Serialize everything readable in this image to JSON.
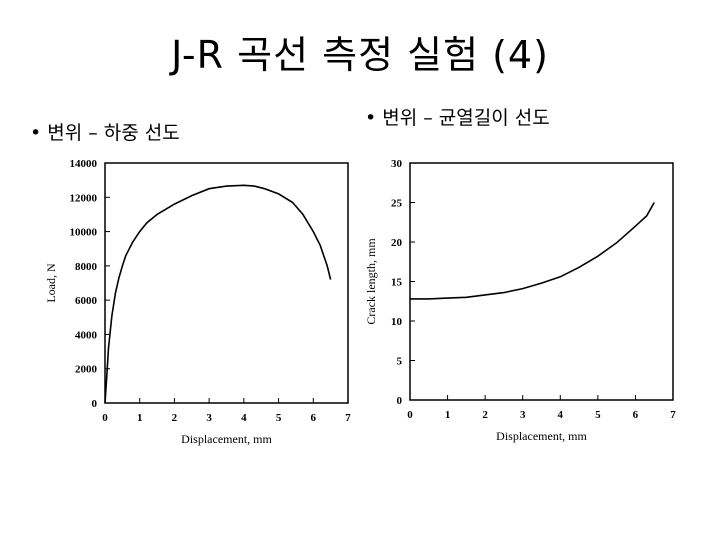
{
  "slide": {
    "title": "J-R 곡선 측정 실험 (4)",
    "bullet_left": "• 변위 – 하중 선도",
    "bullet_right": "• 변위 – 균열길이 선도"
  },
  "colors": {
    "line": "#000000",
    "background": "#ffffff"
  },
  "chart_data": [
    {
      "type": "line",
      "xlabel": "Displacement, mm",
      "ylabel": "Load, N",
      "xlim": [
        0,
        7
      ],
      "ylim": [
        0,
        14000
      ],
      "xticks": [
        "0",
        "1",
        "2",
        "3",
        "4",
        "5",
        "6",
        "7"
      ],
      "yticks": [
        "0",
        "2000",
        "4000",
        "6000",
        "8000",
        "10000",
        "12000",
        "14000"
      ],
      "grid": false,
      "series": [
        {
          "x": [
            0,
            0.05,
            0.1,
            0.2,
            0.3,
            0.4,
            0.5,
            0.6,
            0.8,
            1.0,
            1.2,
            1.5,
            2.0,
            2.5,
            3.0,
            3.5,
            4.0,
            4.3,
            4.6,
            5.0,
            5.4,
            5.7,
            6.0,
            6.2,
            6.3,
            6.4,
            6.5
          ],
          "y": [
            0,
            1500,
            3200,
            5100,
            6400,
            7300,
            8000,
            8600,
            9400,
            10000,
            10500,
            11000,
            11600,
            12100,
            12500,
            12650,
            12700,
            12650,
            12500,
            12200,
            11700,
            11000,
            10000,
            9200,
            8600,
            8000,
            7200
          ]
        }
      ]
    },
    {
      "type": "line",
      "xlabel": "Displacement, mm",
      "ylabel": "Crack length, mm",
      "xlim": [
        0,
        7
      ],
      "ylim": [
        0,
        30
      ],
      "xticks": [
        "0",
        "1",
        "2",
        "3",
        "4",
        "5",
        "6",
        "7"
      ],
      "yticks": [
        "0",
        "5",
        "10",
        "15",
        "20",
        "25",
        "30"
      ],
      "grid": false,
      "series": [
        {
          "x": [
            0,
            0.5,
            1.0,
            1.5,
            2.0,
            2.5,
            3.0,
            3.5,
            4.0,
            4.5,
            5.0,
            5.5,
            6.0,
            6.3,
            6.5
          ],
          "y": [
            12.8,
            12.8,
            12.9,
            13.0,
            13.3,
            13.6,
            14.1,
            14.8,
            15.6,
            16.8,
            18.2,
            19.9,
            22.0,
            23.3,
            25.0
          ]
        }
      ]
    }
  ]
}
